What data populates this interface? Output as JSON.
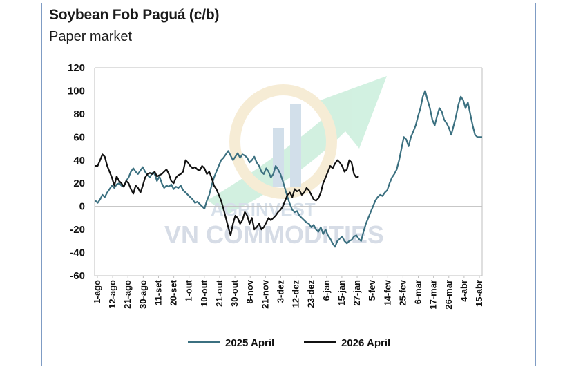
{
  "title": "Soybean Fob Paguá (c/b)",
  "subtitle": "Paper market",
  "watermark": {
    "line1": "AGRINVEST",
    "line2": "VN COMMODITIES"
  },
  "colors": {
    "series_2025": "#3b7080",
    "series_2026": "#111111",
    "frame": "#7f9cc4",
    "zero_line": "#bfbfbf"
  },
  "chart_data": {
    "type": "line",
    "ylim": [
      -60,
      120
    ],
    "yticks": [
      120,
      100,
      80,
      60,
      40,
      20,
      0,
      -20,
      -40,
      -60
    ],
    "x_tick_labels": [
      "1-ago",
      "12-ago",
      "21-ago",
      "30-ago",
      "11-set",
      "20-set",
      "1-out",
      "10-out",
      "21-out",
      "30-out",
      "8-nov",
      "21-nov",
      "3-dez",
      "12-dez",
      "23-dez",
      "6-jan",
      "15-jan",
      "27-jan",
      "5-fev",
      "14-fev",
      "25-fev",
      "6-mar",
      "17-mar",
      "26-mar",
      "4-abr",
      "15-abr"
    ],
    "grid": false,
    "legend": "bottom",
    "series": [
      {
        "name": "2025 April",
        "values": [
          5,
          3,
          6,
          10,
          8,
          12,
          15,
          18,
          16,
          19,
          20,
          18,
          17,
          22,
          25,
          30,
          33,
          30,
          28,
          31,
          34,
          30,
          27,
          25,
          29,
          28,
          22,
          26,
          20,
          16,
          18,
          17,
          19,
          15,
          17,
          16,
          18,
          14,
          12,
          10,
          8,
          6,
          3,
          4,
          2,
          0,
          -2,
          5,
          10,
          18,
          25,
          30,
          35,
          40,
          42,
          45,
          48,
          44,
          40,
          43,
          46,
          42,
          45,
          44,
          42,
          38,
          40,
          43,
          38,
          35,
          30,
          28,
          33,
          30,
          25,
          28,
          35,
          32,
          28,
          22,
          15,
          8,
          2,
          -3,
          -5,
          -4,
          -8,
          -10,
          -12,
          -14,
          -15,
          -18,
          -16,
          -20,
          -22,
          -18,
          -24,
          -20,
          -25,
          -28,
          -32,
          -35,
          -30,
          -28,
          -26,
          -30,
          -32,
          -30,
          -29,
          -26,
          -25,
          -28,
          -30,
          -22,
          -15,
          -10,
          -5,
          0,
          5,
          8,
          10,
          9,
          12,
          14,
          20,
          25,
          28,
          32,
          40,
          50,
          60,
          58,
          52,
          60,
          65,
          70,
          78,
          85,
          95,
          100,
          92,
          85,
          75,
          70,
          78,
          85,
          82,
          75,
          72,
          68,
          62,
          70,
          78,
          88,
          95,
          92,
          85,
          90,
          80,
          70,
          62,
          60,
          60,
          60
        ]
      },
      {
        "name": "2026 April",
        "values": [
          35,
          35,
          40,
          45,
          43,
          35,
          30,
          25,
          18,
          26,
          22,
          20,
          17,
          22,
          20,
          15,
          11,
          18,
          16,
          12,
          18,
          25,
          28,
          29,
          28,
          30,
          26,
          27,
          28,
          30,
          32,
          28,
          22,
          20,
          25,
          27,
          28,
          30,
          40,
          38,
          35,
          33,
          34,
          32,
          31,
          35,
          33,
          28,
          30,
          25,
          18,
          15,
          10,
          5,
          -2,
          -10,
          -18,
          -25,
          -15,
          -8,
          -10,
          -15,
          -12,
          -5,
          -8,
          -15,
          -10,
          -20,
          -18,
          -15,
          -20,
          -18,
          -14,
          -10,
          -12,
          -10,
          -8,
          -5,
          -3,
          0,
          5,
          10,
          12,
          8,
          15,
          13,
          14,
          10,
          12,
          16,
          14,
          10,
          6,
          5,
          7,
          12,
          20,
          25,
          30,
          35,
          33,
          37,
          40,
          38,
          35,
          30,
          32,
          40,
          38,
          28,
          25,
          26
        ]
      }
    ]
  }
}
